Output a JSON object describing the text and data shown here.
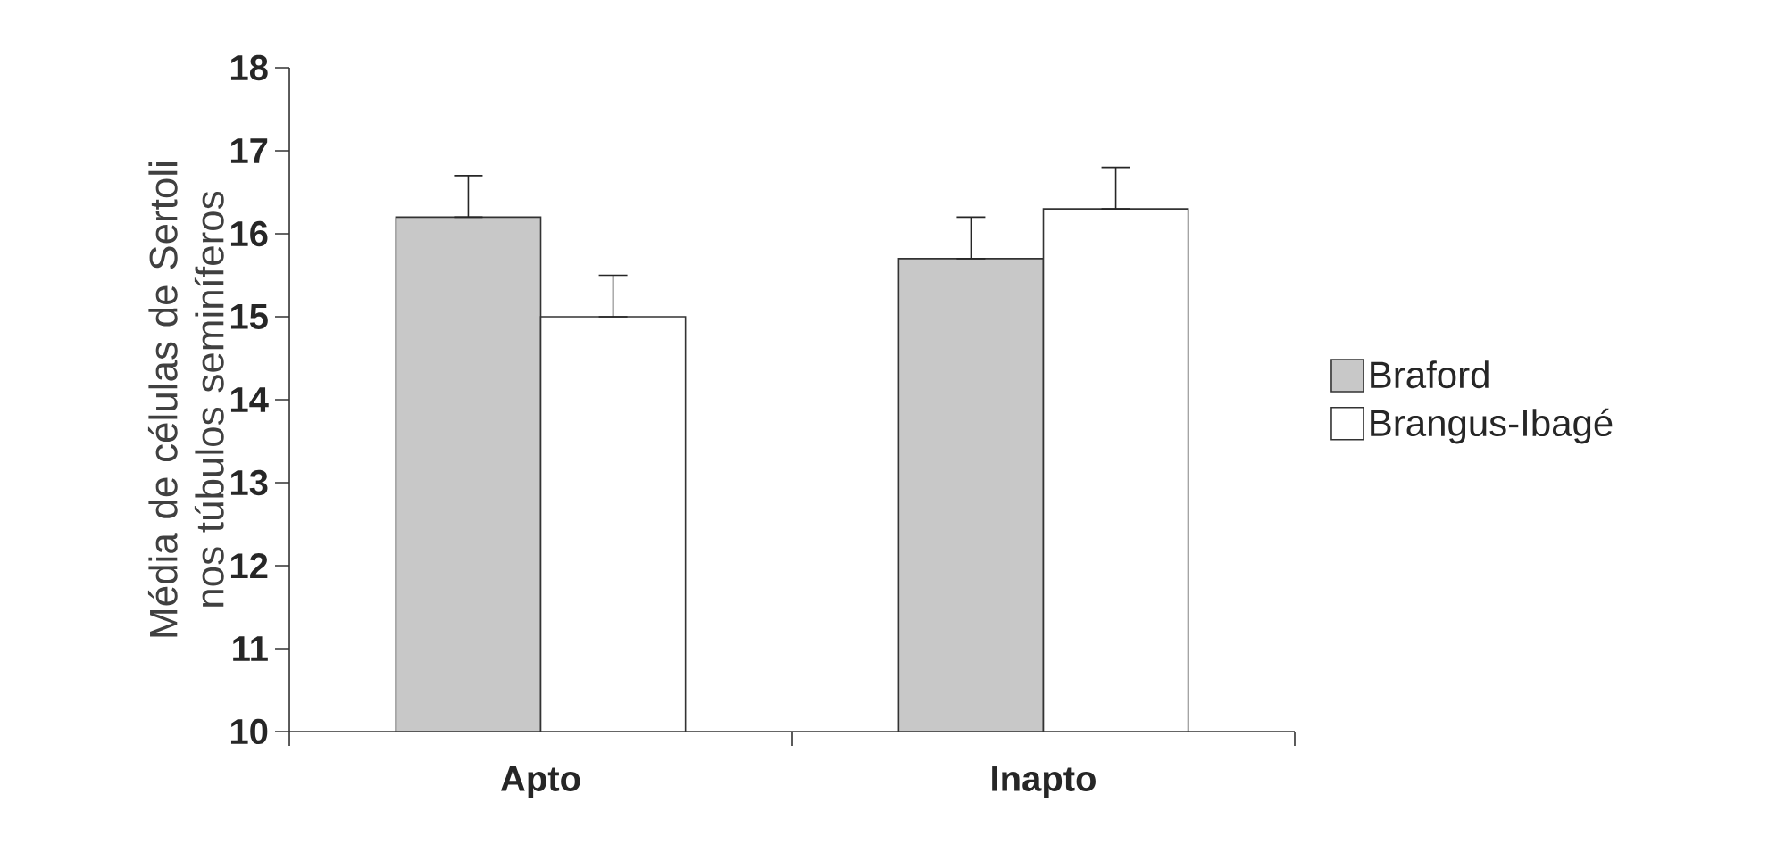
{
  "chart_data": {
    "type": "bar",
    "ylabel": "Média de células de Sertoli nos túbulos seminíferos",
    "categories": [
      "Apto",
      "Inapto"
    ],
    "series": [
      {
        "name": "Braford",
        "color": "#c8c8c8",
        "values": [
          16.2,
          15.7
        ],
        "errors": [
          [
            16.2,
            16.7
          ],
          [
            15.7,
            16.2
          ]
        ]
      },
      {
        "name": "Brangus-Ibagé",
        "color": "#ffffff",
        "values": [
          15.0,
          16.3
        ],
        "errors": [
          [
            15.0,
            15.5
          ],
          [
            16.3,
            16.8
          ]
        ]
      }
    ],
    "ylim": [
      10,
      18
    ],
    "yticks": [
      10,
      11,
      12,
      13,
      14,
      15,
      16,
      17,
      18
    ],
    "grid": false,
    "legend": "right"
  }
}
